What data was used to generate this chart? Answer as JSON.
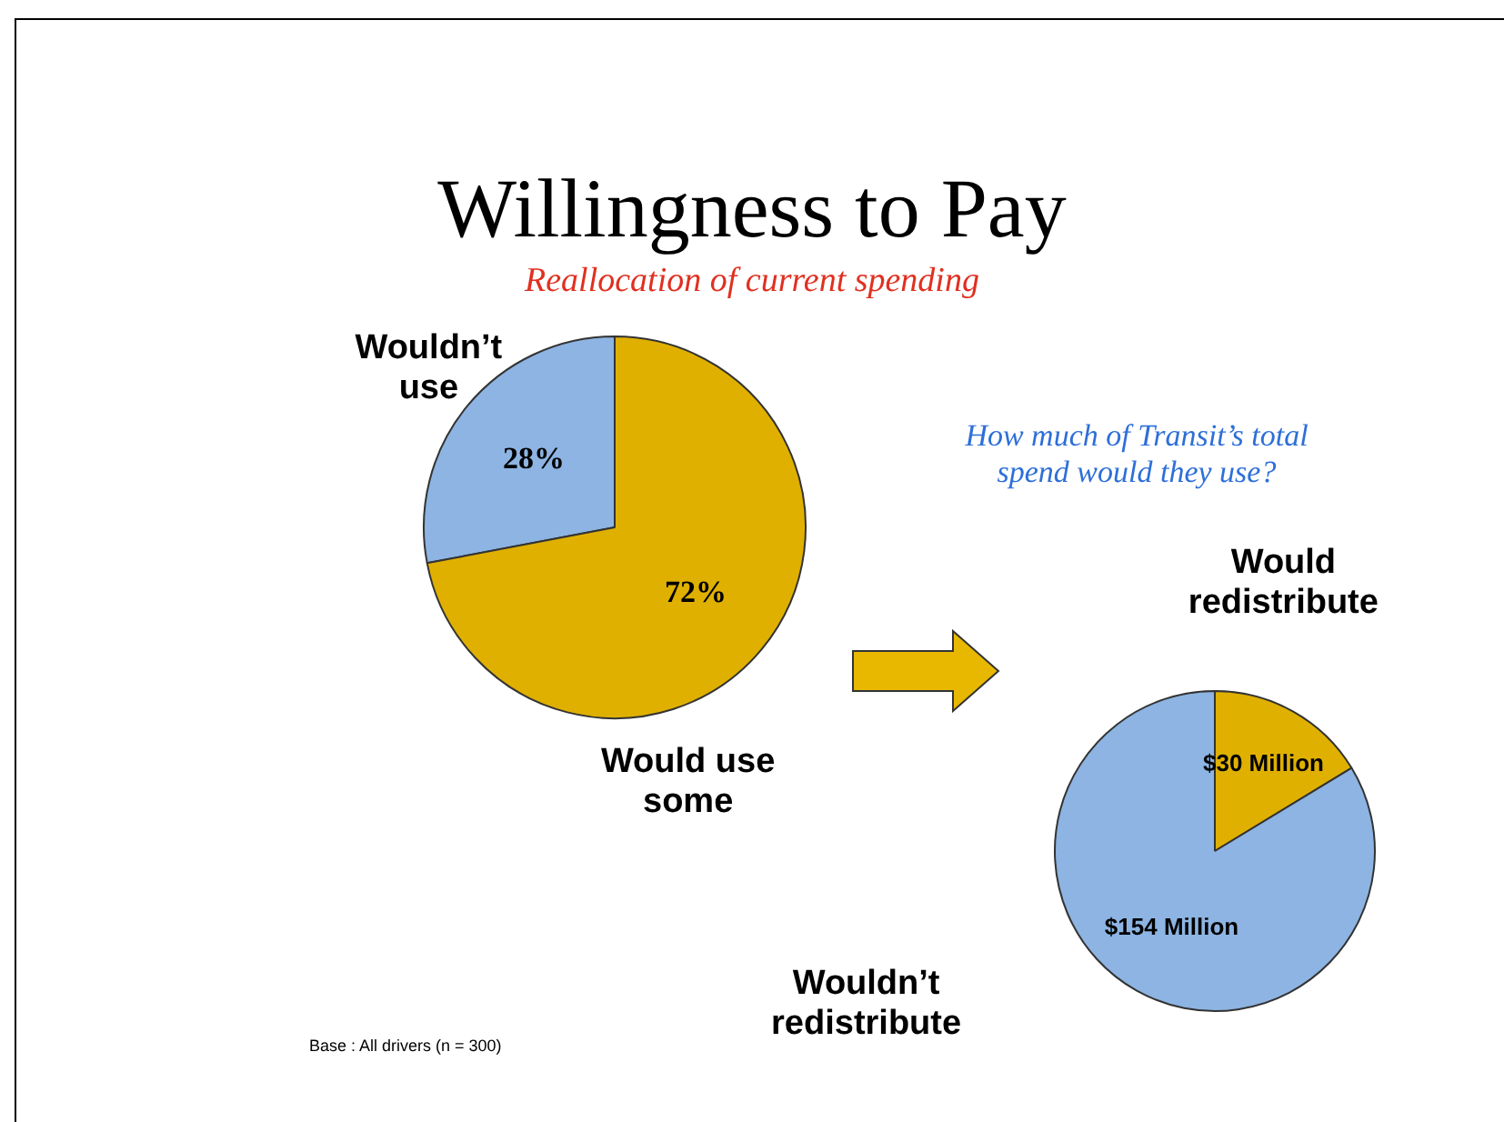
{
  "chart_data": [
    {
      "type": "pie",
      "title": "Willingness to Pay",
      "subtitle": "Reallocation of current spending",
      "categories": [
        "Wouldn’t use",
        "Would use some"
      ],
      "values": [
        28,
        72
      ],
      "colors": [
        "#8db4e2",
        "#e0b000"
      ],
      "value_labels": [
        "28%",
        "72%"
      ],
      "legend": false,
      "annotations": [
        "Base : All drivers (n = 300)"
      ]
    },
    {
      "type": "pie",
      "categories": [
        "Would redistribute",
        "Wouldn’t redistribute"
      ],
      "values": [
        30,
        154
      ],
      "colors": [
        "#e0b000",
        "#8db4e2"
      ],
      "value_labels": [
        "$30 Million",
        "$154 Million"
      ],
      "legend": false,
      "annotations": [
        "How much of Transit’s total spend would they use?"
      ]
    }
  ]
}
